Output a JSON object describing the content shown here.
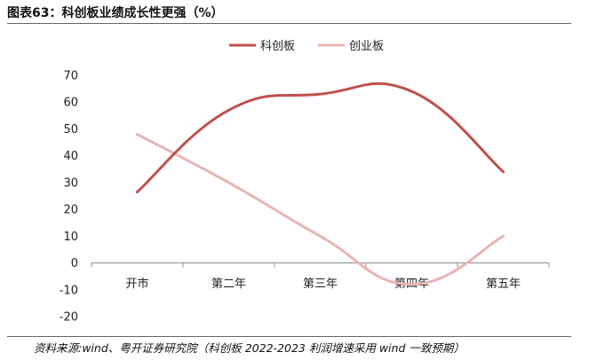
{
  "figure": {
    "title": "图表63：科创板业绩成长性更强（%）",
    "source": "资料来源:wind、粤开证券研究院（科创板 2022-2023 利润增速采用 wind 一致预期）"
  },
  "chart_data": {
    "type": "line",
    "categories": [
      "开市",
      "第二年",
      "第三年",
      "第四年",
      "第五年"
    ],
    "series": [
      {
        "name": "科创板",
        "color": "#c0504d",
        "values": [
          26.5,
          57,
          63,
          64,
          34
        ],
        "smooth": true
      },
      {
        "name": "创业板",
        "color": "#e8b4b2",
        "values": [
          48,
          30,
          10,
          -8,
          10
        ],
        "smooth": true
      }
    ],
    "ylim": [
      -20,
      70
    ],
    "yticks": [
      -20,
      -10,
      0,
      10,
      20,
      30,
      40,
      50,
      60,
      70
    ],
    "grid": false,
    "legend": "top-center"
  }
}
